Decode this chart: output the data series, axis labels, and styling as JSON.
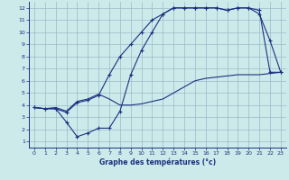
{
  "title": "",
  "xlabel": "Graphe des températures (°c)",
  "background_color": "#cdeaea",
  "grid_color": "#9ab8c8",
  "line_color": "#1a3080",
  "xlim": [
    -0.5,
    23.5
  ],
  "ylim": [
    0.5,
    12.5
  ],
  "xticks": [
    0,
    1,
    2,
    3,
    4,
    5,
    6,
    7,
    8,
    9,
    10,
    11,
    12,
    13,
    14,
    15,
    16,
    17,
    18,
    19,
    20,
    21,
    22,
    23
  ],
  "yticks": [
    1,
    2,
    3,
    4,
    5,
    6,
    7,
    8,
    9,
    10,
    11,
    12
  ],
  "series1_x": [
    0,
    1,
    2,
    3,
    4,
    5,
    6,
    7,
    8,
    9,
    10,
    11,
    12,
    13,
    14,
    15,
    16,
    17,
    18,
    19,
    20,
    21,
    22,
    23
  ],
  "series1_y": [
    3.8,
    3.7,
    3.8,
    3.5,
    4.3,
    4.5,
    4.9,
    4.5,
    4.0,
    4.0,
    4.1,
    4.3,
    4.5,
    5.0,
    5.5,
    6.0,
    6.2,
    6.3,
    6.4,
    6.5,
    6.5,
    6.5,
    6.6,
    6.7
  ],
  "series2_x": [
    0,
    1,
    2,
    3,
    4,
    5,
    6,
    7,
    8,
    9,
    10,
    11,
    12,
    13,
    14,
    15,
    16,
    17,
    18,
    19,
    20,
    21,
    22,
    23
  ],
  "series2_y": [
    3.8,
    3.7,
    3.7,
    2.6,
    1.4,
    1.7,
    2.1,
    2.1,
    3.5,
    6.5,
    8.5,
    10.0,
    11.5,
    12.0,
    12.0,
    12.0,
    12.0,
    12.0,
    11.8,
    12.0,
    12.0,
    11.5,
    9.3,
    6.7
  ],
  "series3_x": [
    0,
    1,
    2,
    3,
    4,
    5,
    6,
    7,
    8,
    9,
    10,
    11,
    12,
    13,
    14,
    15,
    16,
    17,
    18,
    19,
    20,
    21,
    22,
    23
  ],
  "series3_y": [
    3.8,
    3.7,
    3.7,
    3.4,
    4.2,
    4.4,
    4.8,
    6.5,
    8.0,
    9.0,
    10.0,
    11.0,
    11.5,
    12.0,
    12.0,
    12.0,
    12.0,
    12.0,
    11.8,
    12.0,
    12.0,
    11.8,
    6.7,
    6.7
  ]
}
